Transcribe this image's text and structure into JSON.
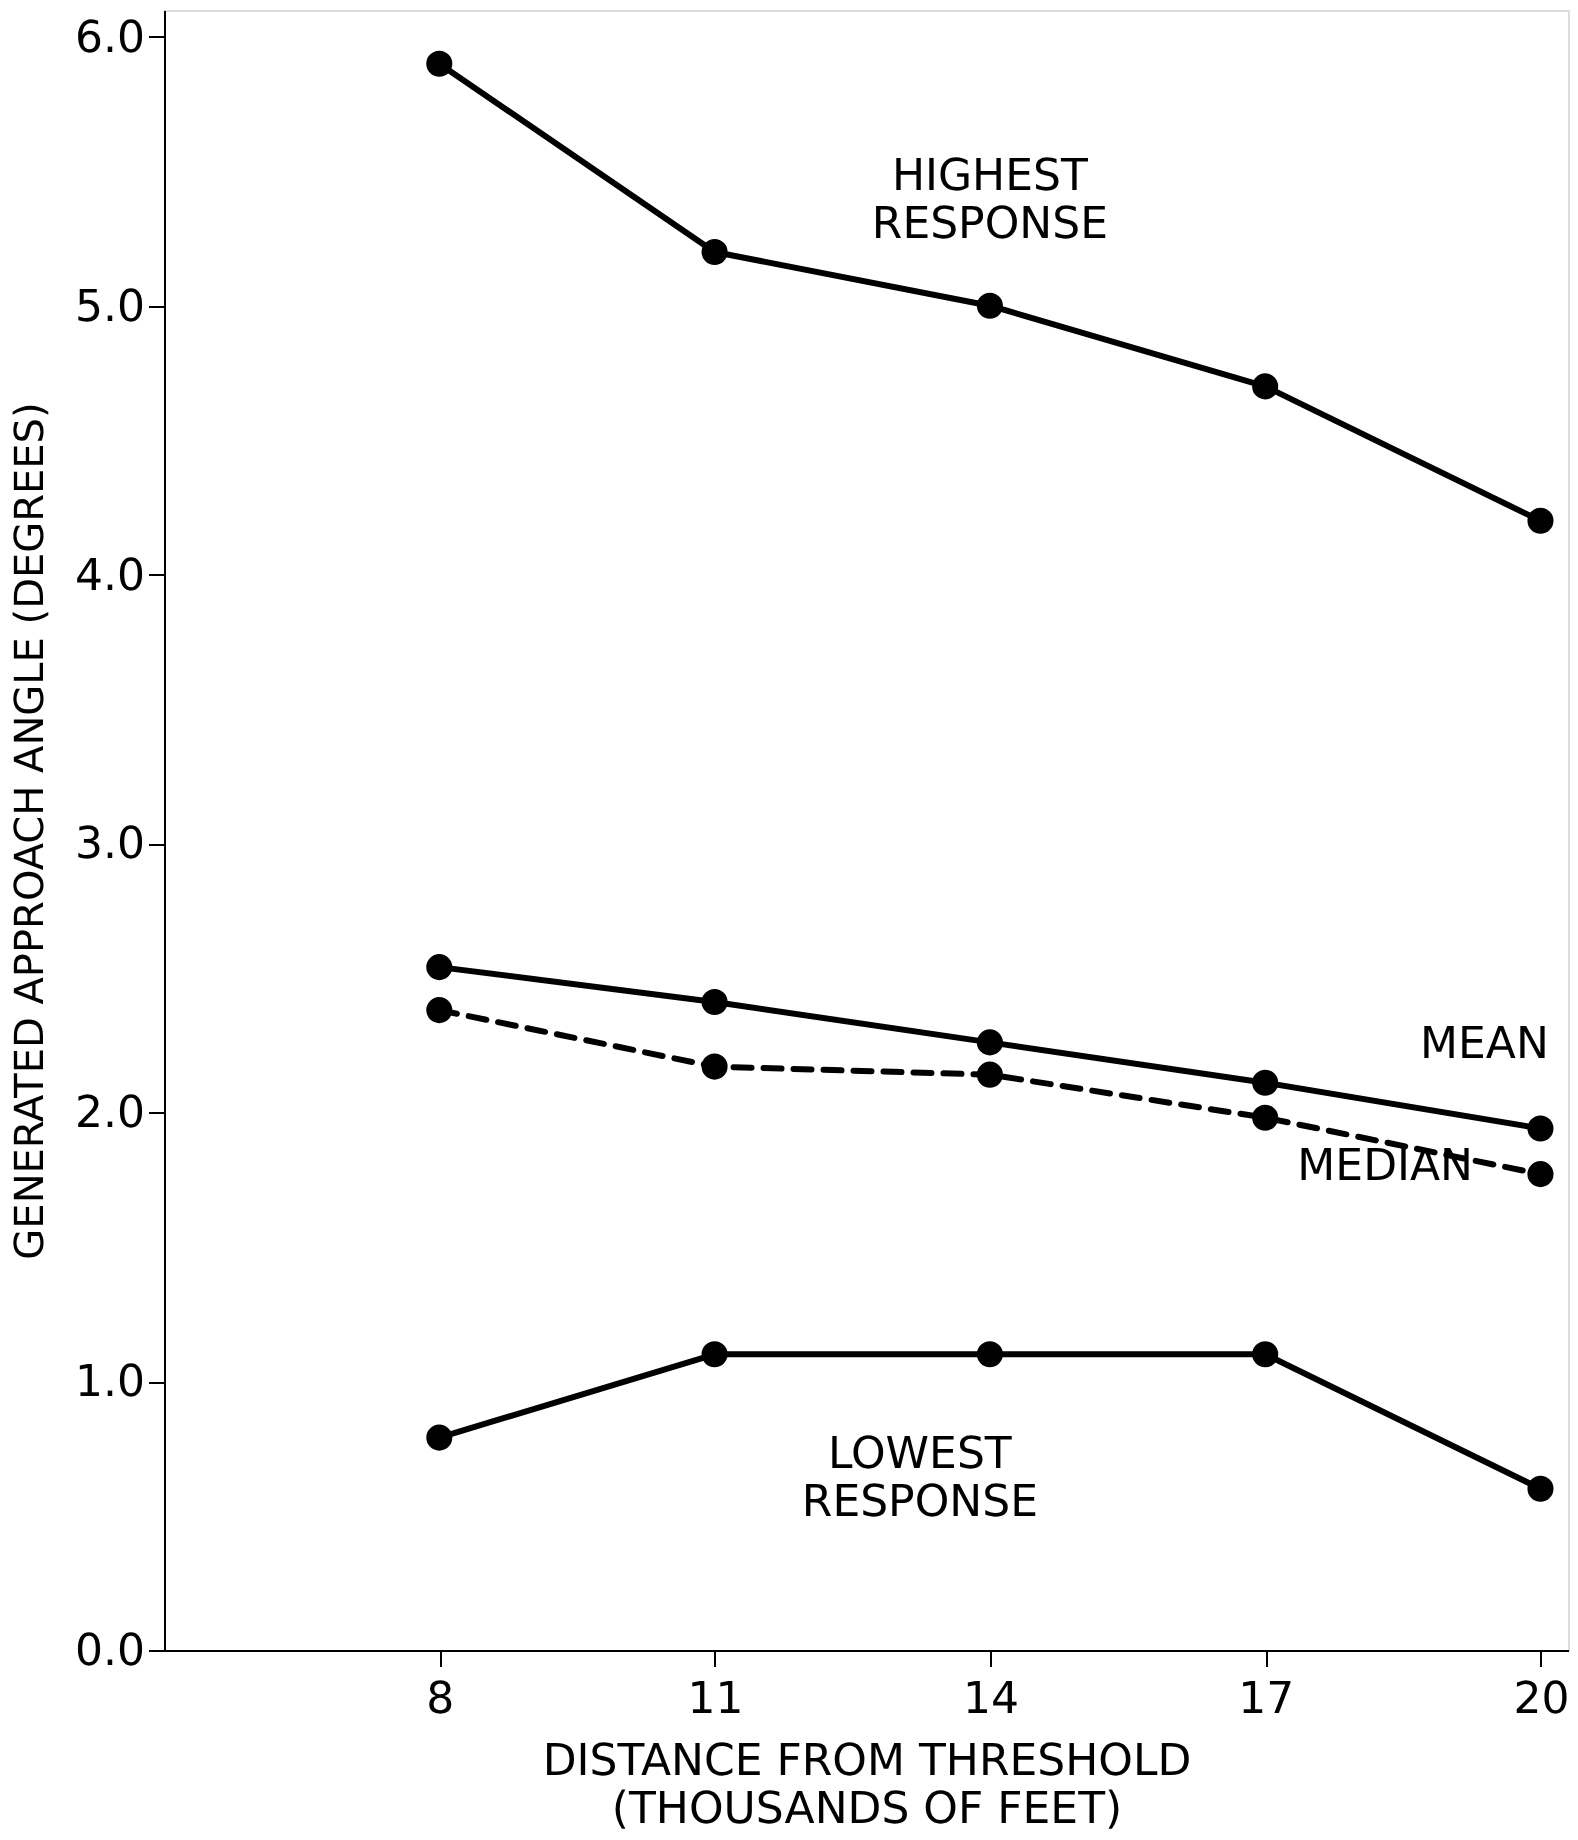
{
  "chart_data": {
    "type": "line",
    "xlabel": "DISTANCE FROM THRESHOLD\n(THOUSANDS OF FEET)",
    "ylabel": "GENERATED APPROACH ANGLE (DEGREES)",
    "x": [
      8,
      11,
      14,
      17,
      20
    ],
    "series": [
      {
        "name": "HIGHEST\nRESPONSE",
        "color": "#000000",
        "values": [
          5.9,
          5.2,
          5.0,
          4.7,
          4.2
        ]
      },
      {
        "name": "MEAN",
        "color": "#000000",
        "values": [
          2.54,
          2.41,
          2.26,
          2.11,
          1.94
        ]
      },
      {
        "name": "MEDIAN",
        "color": "#000000",
        "values": [
          2.38,
          2.17,
          2.14,
          1.98,
          1.77
        ],
        "line_style": "dashed"
      },
      {
        "name": "LOWEST\nRESPONSE",
        "color": "#000000",
        "values": [
          0.79,
          1.1,
          1.1,
          1.1,
          0.6
        ]
      }
    ],
    "xlim": [
      5,
      20.3
    ],
    "xticks": [
      8,
      11,
      14,
      17,
      20
    ],
    "ylim": [
      0,
      6.1
    ],
    "yticks": [
      {
        "value": 0,
        "label": "0.0"
      },
      {
        "value": 1,
        "label": "1.0"
      },
      {
        "value": 2,
        "label": "2.0"
      },
      {
        "value": 3,
        "label": "3.0"
      },
      {
        "value": 4,
        "label": "4.0"
      },
      {
        "value": 5,
        "label": "5.0"
      },
      {
        "value": 6,
        "label": "6.0"
      }
    ],
    "marker": "circle",
    "grid": false
  }
}
